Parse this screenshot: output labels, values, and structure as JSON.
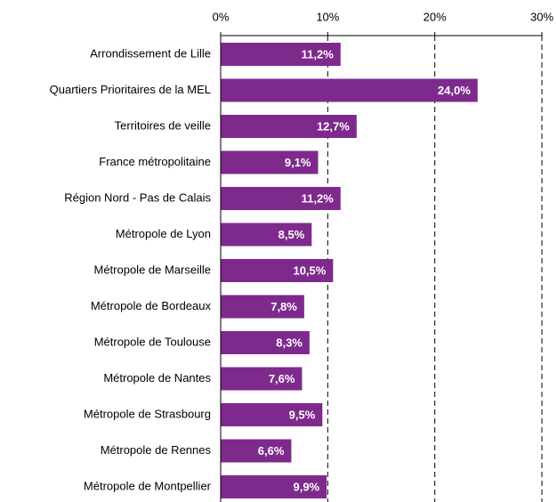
{
  "chart_data": {
    "type": "bar",
    "orientation": "horizontal",
    "categories": [
      "Arrondissement de Lille",
      "Quartiers Prioritaires de la MEL",
      "Territoires de veille",
      "France métropolitaine",
      "Région Nord - Pas de Calais",
      "Métropole de Lyon",
      "Métropole de Marseille",
      "Métropole de Bordeaux",
      "Métropole de Toulouse",
      "Métropole de Nantes",
      "Métropole de Strasbourg",
      "Métropole de Rennes",
      "Métropole de Montpellier"
    ],
    "values": [
      11.2,
      24.0,
      12.7,
      9.1,
      11.2,
      8.5,
      10.5,
      7.8,
      8.3,
      7.6,
      9.5,
      6.6,
      9.9
    ],
    "value_labels": [
      "11,2%",
      "24,0%",
      "12,7%",
      "9,1%",
      "11,2%",
      "8,5%",
      "10,5%",
      "7,8%",
      "8,3%",
      "7,6%",
      "9,5%",
      "6,6%",
      "9,9%"
    ],
    "color": "#7e2a8d",
    "xlim": [
      0,
      30
    ],
    "xticks": [
      {
        "value": 0,
        "label": "0%"
      },
      {
        "value": 10,
        "label": "10%"
      },
      {
        "value": 20,
        "label": "20%"
      },
      {
        "value": 30,
        "label": "30%"
      }
    ],
    "grid": true
  }
}
